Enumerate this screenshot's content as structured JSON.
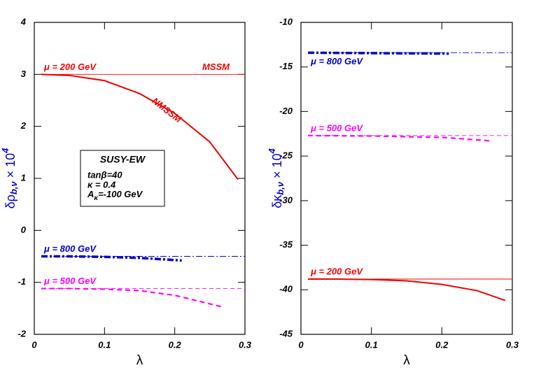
{
  "chart_data": [
    {
      "type": "line",
      "xlabel": "λ",
      "ylabel": {
        "base": "δρ",
        "sub": "b,ν",
        "times": " × 10",
        "sup": "4"
      },
      "xlim": [
        0,
        0.3
      ],
      "ylim": [
        -2,
        4
      ],
      "xticks": [
        0,
        0.1,
        0.2,
        0.3
      ],
      "yticks": [
        -2,
        -1,
        0,
        1,
        2,
        3,
        4
      ],
      "series": [
        {
          "name": "μ = 200 GeV",
          "tag": "MSSM",
          "color": "#ff0000",
          "dash": "solid",
          "width": "thin",
          "x": [
            0.01,
            0.3
          ],
          "values": [
            3,
            3
          ]
        },
        {
          "tag": "NMSSM",
          "color": "#ee0000",
          "dash": "solid",
          "width": "thick",
          "x": [
            0.01,
            0.05,
            0.1,
            0.15,
            0.2,
            0.25,
            0.29
          ],
          "values": [
            3.0,
            2.98,
            2.88,
            2.63,
            2.25,
            1.7,
            0.98
          ]
        },
        {
          "name": "μ = 800 GeV",
          "color": "#0000cc",
          "dash": "dashdot",
          "width": "thin",
          "x": [
            0.01,
            0.3
          ],
          "values": [
            -0.5,
            -0.5
          ]
        },
        {
          "color": "#0000cc",
          "dash": "dashdot",
          "width": "thick",
          "x": [
            0.01,
            0.05,
            0.1,
            0.15,
            0.21
          ],
          "values": [
            -0.5,
            -0.5,
            -0.51,
            -0.53,
            -0.58
          ]
        },
        {
          "name": "μ = 500 GeV",
          "color": "#ff00ff",
          "dash": "dashed",
          "width": "thin",
          "x": [
            0.01,
            0.3
          ],
          "values": [
            -1.12,
            -1.12
          ]
        },
        {
          "color": "#ff00ff",
          "dash": "dashed",
          "width": "thick",
          "x": [
            0.01,
            0.05,
            0.1,
            0.15,
            0.2,
            0.27
          ],
          "values": [
            -1.12,
            -1.12,
            -1.13,
            -1.16,
            -1.25,
            -1.48
          ]
        }
      ],
      "box": {
        "title": "SUSY-EW",
        "lines": [
          "tanβ=40",
          " κ = 0.4"
        ],
        "a": {
          "base": "A",
          "sub": "κ",
          "rest": "=-100 GeV"
        }
      }
    },
    {
      "type": "line",
      "xlabel": "λ",
      "ylabel": {
        "base": "δκ",
        "sub": "b,ν",
        "times": " × 10",
        "sup": "4"
      },
      "xlim": [
        0,
        0.3
      ],
      "ylim": [
        -45,
        -10
      ],
      "xticks": [
        0,
        0.1,
        0.2,
        0.3
      ],
      "yticks": [
        -45,
        -40,
        -35,
        -30,
        -25,
        -20,
        -15,
        -10
      ],
      "series": [
        {
          "name": "μ = 800 GeV",
          "label_side": "below",
          "color": "#0000cc",
          "dash": "dashdot",
          "width": "thin",
          "x": [
            0.01,
            0.3
          ],
          "values": [
            -13.4,
            -13.4
          ]
        },
        {
          "color": "#0000cc",
          "dash": "dashdot",
          "width": "thick",
          "x": [
            0.01,
            0.1,
            0.21
          ],
          "values": [
            -13.4,
            -13.45,
            -13.5
          ]
        },
        {
          "name": "μ = 500 GeV",
          "color": "#ff00ff",
          "dash": "dashed",
          "width": "thin",
          "x": [
            0.01,
            0.3
          ],
          "values": [
            -22.7,
            -22.7
          ]
        },
        {
          "color": "#ff00ff",
          "dash": "dashed",
          "width": "thick",
          "x": [
            0.01,
            0.1,
            0.2,
            0.27
          ],
          "values": [
            -22.7,
            -22.75,
            -22.9,
            -23.3
          ]
        },
        {
          "name": "μ = 200 GeV",
          "color": "#ff0000",
          "dash": "solid",
          "width": "thin",
          "x": [
            0.01,
            0.3
          ],
          "values": [
            -38.8,
            -38.8
          ]
        },
        {
          "color": "#ee0000",
          "dash": "solid",
          "width": "thick",
          "x": [
            0.01,
            0.05,
            0.1,
            0.15,
            0.2,
            0.25,
            0.29
          ],
          "values": [
            -38.8,
            -38.8,
            -38.85,
            -39.0,
            -39.4,
            -40.1,
            -41.2
          ]
        }
      ]
    }
  ]
}
